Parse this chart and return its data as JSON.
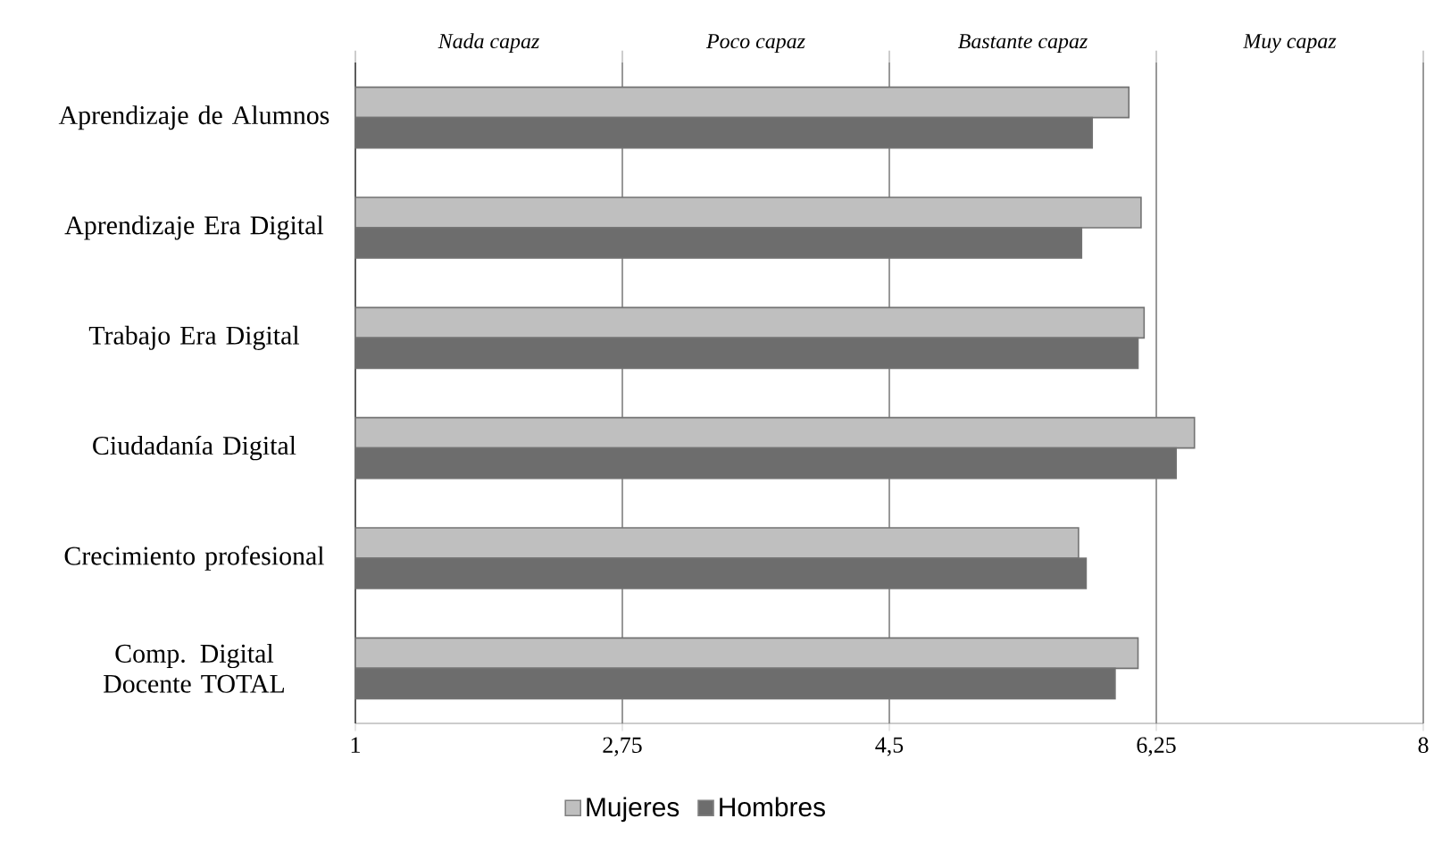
{
  "chart_data": {
    "type": "bar",
    "orientation": "horizontal",
    "categories": [
      "Aprendizaje de Alumnos",
      "Aprendizaje Era Digital",
      "Trabajo Era Digital",
      "Ciudadanía Digital",
      "Crecimiento profesional",
      "Comp. Digital Docente TOTAL"
    ],
    "series": [
      {
        "name": "Mujeres",
        "color": "#bfbfbf",
        "values": [
          6.07,
          6.15,
          6.17,
          6.5,
          5.74,
          6.13
        ]
      },
      {
        "name": "Hombres",
        "color": "#6d6d6d",
        "values": [
          5.83,
          5.76,
          6.13,
          6.38,
          5.79,
          5.98
        ]
      }
    ],
    "xlim": [
      1,
      8
    ],
    "xticks": [
      1,
      {
        "value": 2.75,
        "label": "2,75"
      },
      {
        "value": 4.5,
        "label": "4,5"
      },
      {
        "value": 6.25,
        "label": "6,25"
      },
      8
    ],
    "annotations": [
      "Nada capaz",
      "Poco capaz",
      "Bastante capaz",
      "Muy capaz"
    ],
    "grid": "x",
    "legend": "bottom"
  }
}
